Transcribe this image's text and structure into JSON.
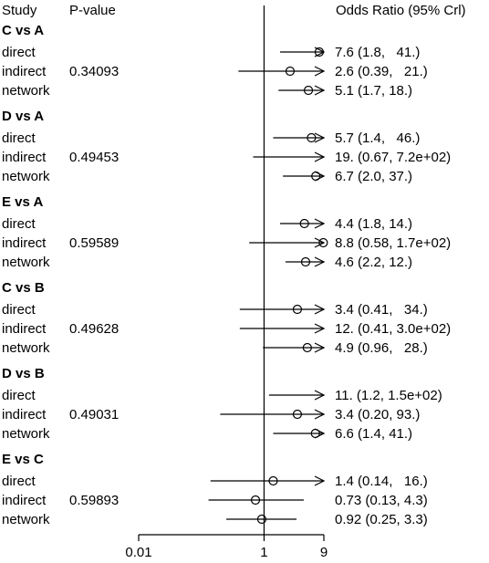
{
  "header": {
    "study": "Study",
    "pvalue": "P-value",
    "or_label": "Odds Ratio (95% Crl)"
  },
  "chart_data": {
    "type": "forest",
    "title": "",
    "xlabel": "",
    "scale": "log",
    "xlim": [
      0.01,
      9
    ],
    "x_ticks": [
      "0.01",
      "1",
      "9"
    ],
    "x_tick_values": [
      0.01,
      1,
      9
    ],
    "reference_line": 1,
    "groups": [
      {
        "label": "C vs A",
        "pvalue": "0.34093",
        "rows": [
          {
            "label": "direct",
            "or": 7.6,
            "low": 1.8,
            "high": 41,
            "or_text": "7.6 (1.8,   41.)"
          },
          {
            "label": "indirect",
            "or": 2.6,
            "low": 0.39,
            "high": 21,
            "or_text": "2.6 (0.39,   21.)"
          },
          {
            "label": "network",
            "or": 5.1,
            "low": 1.7,
            "high": 18,
            "or_text": "5.1 (1.7, 18.)"
          }
        ]
      },
      {
        "label": "D vs A",
        "pvalue": "0.49453",
        "rows": [
          {
            "label": "direct",
            "or": 5.7,
            "low": 1.4,
            "high": 46,
            "or_text": "5.7 (1.4,   46.)"
          },
          {
            "label": "indirect",
            "or": 19,
            "low": 0.67,
            "high": 720,
            "or_text": "19. (0.67, 7.2e+02)"
          },
          {
            "label": "network",
            "or": 6.7,
            "low": 2.0,
            "high": 37,
            "or_text": "6.7 (2.0, 37.)"
          }
        ]
      },
      {
        "label": "E vs A",
        "pvalue": "0.59589",
        "rows": [
          {
            "label": "direct",
            "or": 4.4,
            "low": 1.8,
            "high": 14,
            "or_text": "4.4 (1.8, 14.)"
          },
          {
            "label": "indirect",
            "or": 8.8,
            "low": 0.58,
            "high": 170,
            "or_text": "8.8 (0.58, 1.7e+02)"
          },
          {
            "label": "network",
            "or": 4.6,
            "low": 2.2,
            "high": 12,
            "or_text": "4.6 (2.2, 12.)"
          }
        ]
      },
      {
        "label": "C vs B",
        "pvalue": "0.49628",
        "rows": [
          {
            "label": "direct",
            "or": 3.4,
            "low": 0.41,
            "high": 34,
            "or_text": "3.4 (0.41,   34.)"
          },
          {
            "label": "indirect",
            "or": 12,
            "low": 0.41,
            "high": 300,
            "or_text": "12. (0.41, 3.0e+02)"
          },
          {
            "label": "network",
            "or": 4.9,
            "low": 0.96,
            "high": 28,
            "or_text": "4.9 (0.96,   28.)"
          }
        ]
      },
      {
        "label": "D vs B",
        "pvalue": "0.49031",
        "rows": [
          {
            "label": "direct",
            "or": 11,
            "low": 1.2,
            "high": 150,
            "or_text": "11. (1.2, 1.5e+02)"
          },
          {
            "label": "indirect",
            "or": 3.4,
            "low": 0.2,
            "high": 93,
            "or_text": "3.4 (0.20, 93.)"
          },
          {
            "label": "network",
            "or": 6.6,
            "low": 1.4,
            "high": 41,
            "or_text": "6.6 (1.4, 41.)"
          }
        ]
      },
      {
        "label": "E vs C",
        "pvalue": "0.59893",
        "rows": [
          {
            "label": "direct",
            "or": 1.4,
            "low": 0.14,
            "high": 16,
            "or_text": "1.4 (0.14,   16.)"
          },
          {
            "label": "indirect",
            "or": 0.73,
            "low": 0.13,
            "high": 4.3,
            "or_text": "0.73 (0.13, 4.3)"
          },
          {
            "label": "network",
            "or": 0.92,
            "low": 0.25,
            "high": 3.3,
            "or_text": "0.92 (0.25, 3.3)"
          }
        ]
      }
    ]
  }
}
